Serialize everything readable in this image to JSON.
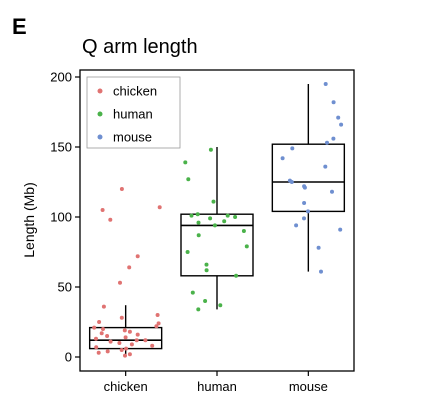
{
  "panel_label": "E",
  "chart_data": {
    "type": "box",
    "title": "Q arm length",
    "xlabel": "",
    "ylabel": "Length (Mb)",
    "ylim": [
      -5,
      205
    ],
    "yticks": [
      0,
      50,
      100,
      150,
      200
    ],
    "categories": [
      "chicken",
      "human",
      "mouse"
    ],
    "legend": {
      "position": "top-left",
      "entries": [
        "chicken",
        "human",
        "mouse"
      ]
    },
    "colors": {
      "chicken": "#e07372",
      "human": "#4ab24a",
      "mouse": "#6f8fd0"
    },
    "boxes": [
      {
        "name": "chicken",
        "whisker_low": 0,
        "q1": 6,
        "median": 12,
        "q3": 21,
        "whisker_high": 37
      },
      {
        "name": "human",
        "whisker_low": 34,
        "q1": 58,
        "median": 94,
        "q3": 102,
        "whisker_high": 150
      },
      {
        "name": "mouse",
        "whisker_low": 61,
        "q1": 104,
        "median": 125,
        "q3": 152,
        "whisker_high": 195
      }
    ],
    "series": [
      {
        "name": "chicken",
        "values": [
          1,
          2,
          3,
          4,
          5,
          6,
          7,
          8,
          9,
          10,
          11,
          12,
          12,
          13,
          14,
          15,
          16,
          17,
          18,
          19,
          20,
          21,
          22,
          24,
          25,
          28,
          30,
          36,
          53,
          64,
          72,
          98,
          105,
          107,
          120
        ]
      },
      {
        "name": "human",
        "values": [
          34,
          37,
          40,
          46,
          58,
          62,
          66,
          75,
          79,
          87,
          90,
          94,
          96,
          97,
          99,
          100,
          101,
          101,
          102,
          111,
          127,
          139,
          148
        ]
      },
      {
        "name": "mouse",
        "values": [
          61,
          78,
          91,
          94,
          99,
          104,
          110,
          118,
          121,
          122,
          125,
          126,
          136,
          142,
          149,
          153,
          156,
          166,
          171,
          182,
          195
        ]
      }
    ]
  }
}
